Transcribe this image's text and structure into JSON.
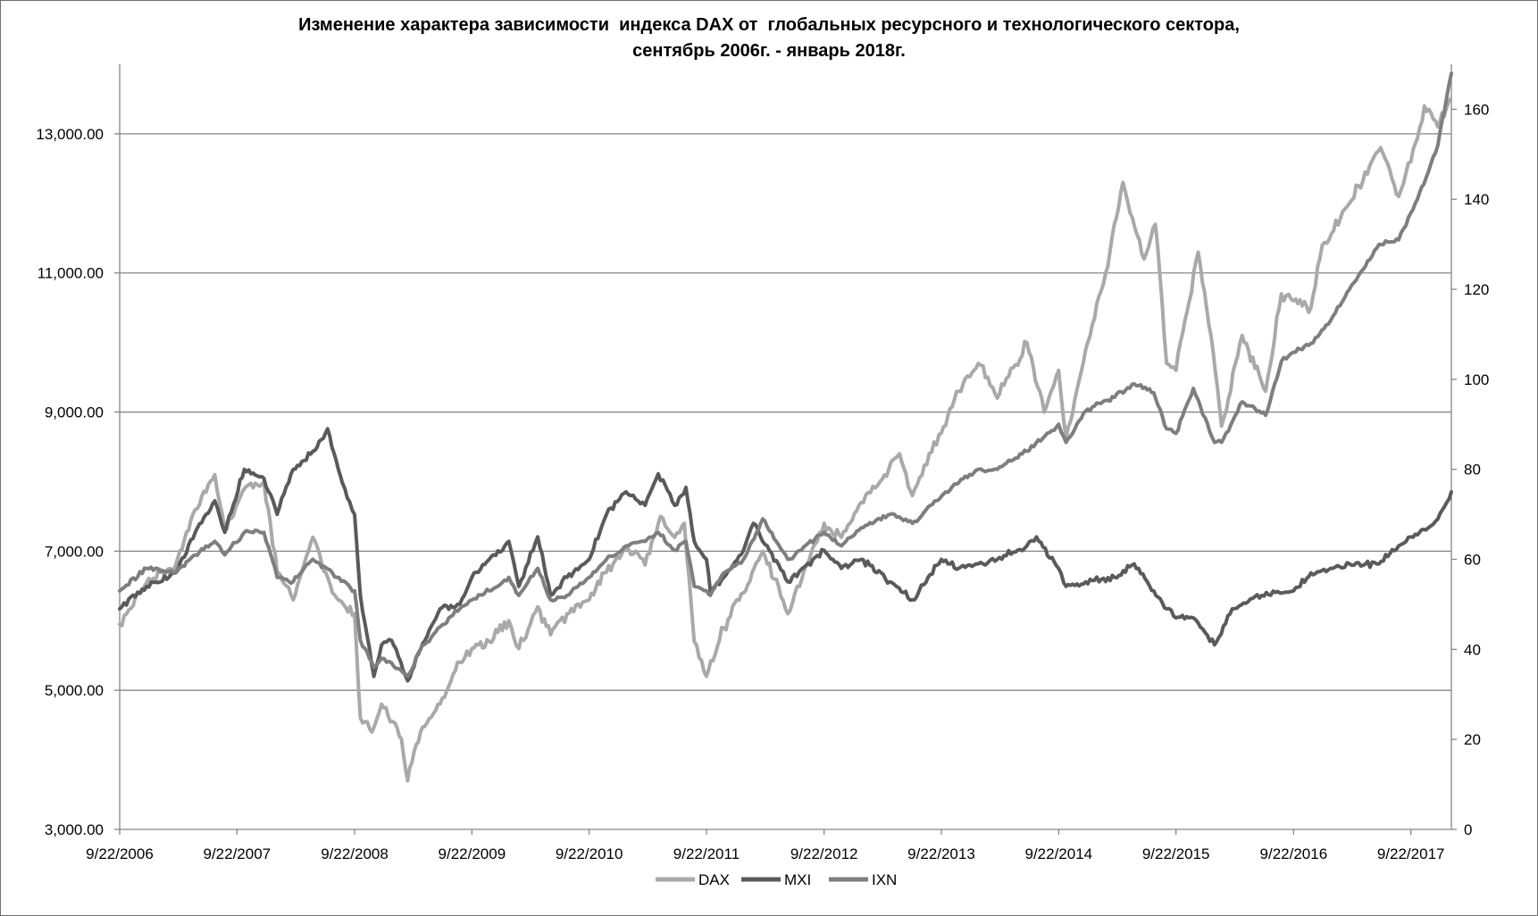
{
  "chart_data": {
    "type": "line",
    "title_line1": "Изменение характера зависимости  индекса DAX от  глобальных ресурсного и технологического сектора,",
    "title_line2": "сентябрь 2006г. - январь 2018г.",
    "x_ticks": [
      "9/22/2006",
      "9/22/2007",
      "9/22/2008",
      "9/22/2009",
      "9/22/2010",
      "9/22/2011",
      "9/22/2012",
      "9/22/2013",
      "9/22/2014",
      "9/22/2015",
      "9/22/2016",
      "9/22/2017"
    ],
    "xlim": [
      "2006-09-22",
      "2018-01-26"
    ],
    "y_left": {
      "ticks": [
        "3,000.00",
        "5,000.00",
        "7,000.00",
        "9,000.00",
        "11,000.00",
        "13,000.00"
      ],
      "range": [
        3000,
        14000
      ]
    },
    "y_right": {
      "ticks": [
        "0",
        "20",
        "40",
        "60",
        "80",
        "100",
        "120",
        "140",
        "160"
      ],
      "range": [
        0,
        170
      ]
    },
    "grid": "horizontal",
    "legend_position": "bottom",
    "series": [
      {
        "name": "DAX",
        "axis": "left",
        "color": "#a9a9a9",
        "points": [
          [
            "2006-09-22",
            5950
          ],
          [
            "2006-12-15",
            6550
          ],
          [
            "2007-03-15",
            6800
          ],
          [
            "2007-05-15",
            7600
          ],
          [
            "2007-07-15",
            8100
          ],
          [
            "2007-08-15",
            7300
          ],
          [
            "2007-10-15",
            7900
          ],
          [
            "2007-12-15",
            8000
          ],
          [
            "2008-01-25",
            6700
          ],
          [
            "2008-03-15",
            6300
          ],
          [
            "2008-05-15",
            7200
          ],
          [
            "2008-07-15",
            6400
          ],
          [
            "2008-09-22",
            6100
          ],
          [
            "2008-10-10",
            4600
          ],
          [
            "2008-11-15",
            4400
          ],
          [
            "2008-12-15",
            4800
          ],
          [
            "2009-02-15",
            4300
          ],
          [
            "2009-03-06",
            3700
          ],
          [
            "2009-04-15",
            4400
          ],
          [
            "2009-06-15",
            4800
          ],
          [
            "2009-08-15",
            5400
          ],
          [
            "2009-09-22",
            5600
          ],
          [
            "2009-11-15",
            5700
          ],
          [
            "2010-01-15",
            6000
          ],
          [
            "2010-02-15",
            5600
          ],
          [
            "2010-04-15",
            6200
          ],
          [
            "2010-05-25",
            5800
          ],
          [
            "2010-07-15",
            6100
          ],
          [
            "2010-09-22",
            6300
          ],
          [
            "2010-11-15",
            6700
          ],
          [
            "2011-01-15",
            7050
          ],
          [
            "2011-03-15",
            6800
          ],
          [
            "2011-05-02",
            7500
          ],
          [
            "2011-06-15",
            7200
          ],
          [
            "2011-07-15",
            7400
          ],
          [
            "2011-08-15",
            5700
          ],
          [
            "2011-09-22",
            5200
          ],
          [
            "2011-11-15",
            5900
          ],
          [
            "2012-01-15",
            6400
          ],
          [
            "2012-03-15",
            7000
          ],
          [
            "2012-06-01",
            6100
          ],
          [
            "2012-07-15",
            6600
          ],
          [
            "2012-09-22",
            7400
          ],
          [
            "2012-11-15",
            7200
          ],
          [
            "2013-01-15",
            7700
          ],
          [
            "2013-03-15",
            8000
          ],
          [
            "2013-05-15",
            8400
          ],
          [
            "2013-06-24",
            7800
          ],
          [
            "2013-08-15",
            8400
          ],
          [
            "2013-09-22",
            8700
          ],
          [
            "2013-11-15",
            9300
          ],
          [
            "2014-01-15",
            9700
          ],
          [
            "2014-03-15",
            9200
          ],
          [
            "2014-06-15",
            10000
          ],
          [
            "2014-08-08",
            9000
          ],
          [
            "2014-09-22",
            9600
          ],
          [
            "2014-10-15",
            8600
          ],
          [
            "2014-12-15",
            9900
          ],
          [
            "2015-02-15",
            11000
          ],
          [
            "2015-04-10",
            12300
          ],
          [
            "2015-06-15",
            11200
          ],
          [
            "2015-07-20",
            11700
          ],
          [
            "2015-08-24",
            9700
          ],
          [
            "2015-09-22",
            9600
          ],
          [
            "2015-11-30",
            11300
          ],
          [
            "2016-01-15",
            9900
          ],
          [
            "2016-02-11",
            8800
          ],
          [
            "2016-04-15",
            10100
          ],
          [
            "2016-06-27",
            9300
          ],
          [
            "2016-08-15",
            10700
          ],
          [
            "2016-09-22",
            10600
          ],
          [
            "2016-11-15",
            10500
          ],
          [
            "2016-12-20",
            11400
          ],
          [
            "2017-03-15",
            12000
          ],
          [
            "2017-06-20",
            12800
          ],
          [
            "2017-08-15",
            12100
          ],
          [
            "2017-09-22",
            12600
          ],
          [
            "2017-11-03",
            13400
          ],
          [
            "2017-12-15",
            13100
          ],
          [
            "2018-01-23",
            13500
          ]
        ]
      },
      {
        "name": "MXI",
        "axis": "right",
        "color": "#5a5a5a",
        "points": [
          [
            "2006-09-22",
            49
          ],
          [
            "2006-12-15",
            54
          ],
          [
            "2007-03-15",
            57
          ],
          [
            "2007-05-15",
            66
          ],
          [
            "2007-07-15",
            73
          ],
          [
            "2007-08-15",
            66
          ],
          [
            "2007-10-15",
            80
          ],
          [
            "2007-12-15",
            78
          ],
          [
            "2008-01-25",
            70
          ],
          [
            "2008-03-15",
            80
          ],
          [
            "2008-05-15",
            84
          ],
          [
            "2008-06-30",
            89
          ],
          [
            "2008-08-15",
            77
          ],
          [
            "2008-09-22",
            70
          ],
          [
            "2008-10-10",
            52
          ],
          [
            "2008-11-21",
            34
          ],
          [
            "2008-12-15",
            41
          ],
          [
            "2009-01-15",
            42
          ],
          [
            "2009-03-06",
            33
          ],
          [
            "2009-04-15",
            40
          ],
          [
            "2009-06-15",
            49
          ],
          [
            "2009-08-15",
            50
          ],
          [
            "2009-09-22",
            56
          ],
          [
            "2009-11-15",
            60
          ],
          [
            "2010-01-15",
            64
          ],
          [
            "2010-02-15",
            54
          ],
          [
            "2010-04-15",
            65
          ],
          [
            "2010-05-25",
            52
          ],
          [
            "2010-07-15",
            56
          ],
          [
            "2010-09-22",
            60
          ],
          [
            "2010-11-15",
            70
          ],
          [
            "2011-01-15",
            75
          ],
          [
            "2011-03-15",
            72
          ],
          [
            "2011-04-25",
            79
          ],
          [
            "2011-06-15",
            72
          ],
          [
            "2011-07-20",
            76
          ],
          [
            "2011-08-15",
            64
          ],
          [
            "2011-09-22",
            60
          ],
          [
            "2011-10-04",
            53
          ],
          [
            "2011-11-15",
            56
          ],
          [
            "2012-01-15",
            62
          ],
          [
            "2012-02-15",
            68
          ],
          [
            "2012-06-01",
            55
          ],
          [
            "2012-09-22",
            62
          ],
          [
            "2012-11-15",
            58
          ],
          [
            "2013-01-15",
            60
          ],
          [
            "2013-04-15",
            55
          ],
          [
            "2013-06-24",
            51
          ],
          [
            "2013-09-22",
            60
          ],
          [
            "2013-11-15",
            58
          ],
          [
            "2014-01-15",
            59
          ],
          [
            "2014-03-15",
            60
          ],
          [
            "2014-06-15",
            63
          ],
          [
            "2014-07-15",
            65
          ],
          [
            "2014-09-22",
            58
          ],
          [
            "2014-10-15",
            54
          ],
          [
            "2014-12-15",
            55
          ],
          [
            "2015-03-15",
            56
          ],
          [
            "2015-05-15",
            59
          ],
          [
            "2015-07-15",
            53
          ],
          [
            "2015-08-24",
            49
          ],
          [
            "2015-09-22",
            47
          ],
          [
            "2015-11-15",
            47
          ],
          [
            "2016-01-20",
            41
          ],
          [
            "2016-03-15",
            49
          ],
          [
            "2016-06-15",
            52
          ],
          [
            "2016-09-22",
            53
          ],
          [
            "2016-11-15",
            57
          ],
          [
            "2017-01-15",
            58
          ],
          [
            "2017-03-15",
            59
          ],
          [
            "2017-06-15",
            59
          ],
          [
            "2017-08-15",
            63
          ],
          [
            "2017-09-22",
            65
          ],
          [
            "2017-11-15",
            67
          ],
          [
            "2017-12-15",
            69
          ],
          [
            "2018-01-26",
            75
          ]
        ]
      },
      {
        "name": "IXN",
        "axis": "right",
        "color": "#7e7e7e",
        "points": [
          [
            "2006-09-22",
            53
          ],
          [
            "2006-12-15",
            58
          ],
          [
            "2007-03-15",
            57
          ],
          [
            "2007-05-15",
            61
          ],
          [
            "2007-07-15",
            64
          ],
          [
            "2007-08-15",
            61
          ],
          [
            "2007-10-15",
            66
          ],
          [
            "2007-12-15",
            66
          ],
          [
            "2008-01-25",
            56
          ],
          [
            "2008-03-15",
            55
          ],
          [
            "2008-05-15",
            60
          ],
          [
            "2008-07-15",
            57
          ],
          [
            "2008-09-22",
            53
          ],
          [
            "2008-10-10",
            42
          ],
          [
            "2008-11-21",
            36
          ],
          [
            "2008-12-15",
            38
          ],
          [
            "2009-01-15",
            37
          ],
          [
            "2009-03-06",
            34
          ],
          [
            "2009-04-15",
            40
          ],
          [
            "2009-06-15",
            45
          ],
          [
            "2009-08-15",
            49
          ],
          [
            "2009-09-22",
            51
          ],
          [
            "2009-11-15",
            53
          ],
          [
            "2010-01-15",
            56
          ],
          [
            "2010-02-15",
            52
          ],
          [
            "2010-04-15",
            58
          ],
          [
            "2010-05-25",
            51
          ],
          [
            "2010-07-15",
            52
          ],
          [
            "2010-09-22",
            56
          ],
          [
            "2010-11-15",
            60
          ],
          [
            "2011-01-15",
            63
          ],
          [
            "2011-03-15",
            64
          ],
          [
            "2011-04-25",
            66
          ],
          [
            "2011-06-15",
            62
          ],
          [
            "2011-07-20",
            64
          ],
          [
            "2011-08-15",
            54
          ],
          [
            "2011-09-22",
            53
          ],
          [
            "2011-10-04",
            52
          ],
          [
            "2011-11-15",
            57
          ],
          [
            "2012-01-15",
            60
          ],
          [
            "2012-03-15",
            69
          ],
          [
            "2012-06-01",
            60
          ],
          [
            "2012-09-22",
            66
          ],
          [
            "2012-11-15",
            63
          ],
          [
            "2013-01-15",
            67
          ],
          [
            "2013-04-15",
            70
          ],
          [
            "2013-06-24",
            68
          ],
          [
            "2013-09-22",
            74
          ],
          [
            "2013-11-15",
            77
          ],
          [
            "2014-01-15",
            80
          ],
          [
            "2014-03-15",
            80
          ],
          [
            "2014-06-15",
            84
          ],
          [
            "2014-09-22",
            90
          ],
          [
            "2014-10-15",
            86
          ],
          [
            "2014-12-15",
            93
          ],
          [
            "2015-03-15",
            96
          ],
          [
            "2015-05-15",
            99
          ],
          [
            "2015-07-15",
            97
          ],
          [
            "2015-08-24",
            89
          ],
          [
            "2015-09-22",
            88
          ],
          [
            "2015-11-15",
            98
          ],
          [
            "2016-01-20",
            86
          ],
          [
            "2016-02-11",
            86
          ],
          [
            "2016-04-15",
            95
          ],
          [
            "2016-06-27",
            92
          ],
          [
            "2016-08-15",
            104
          ],
          [
            "2016-09-22",
            106
          ],
          [
            "2016-11-15",
            108
          ],
          [
            "2017-01-15",
            113
          ],
          [
            "2017-03-15",
            120
          ],
          [
            "2017-06-15",
            130
          ],
          [
            "2017-08-15",
            131
          ],
          [
            "2017-09-22",
            137
          ],
          [
            "2017-11-15",
            146
          ],
          [
            "2017-12-15",
            152
          ],
          [
            "2018-01-26",
            168
          ]
        ]
      }
    ]
  }
}
